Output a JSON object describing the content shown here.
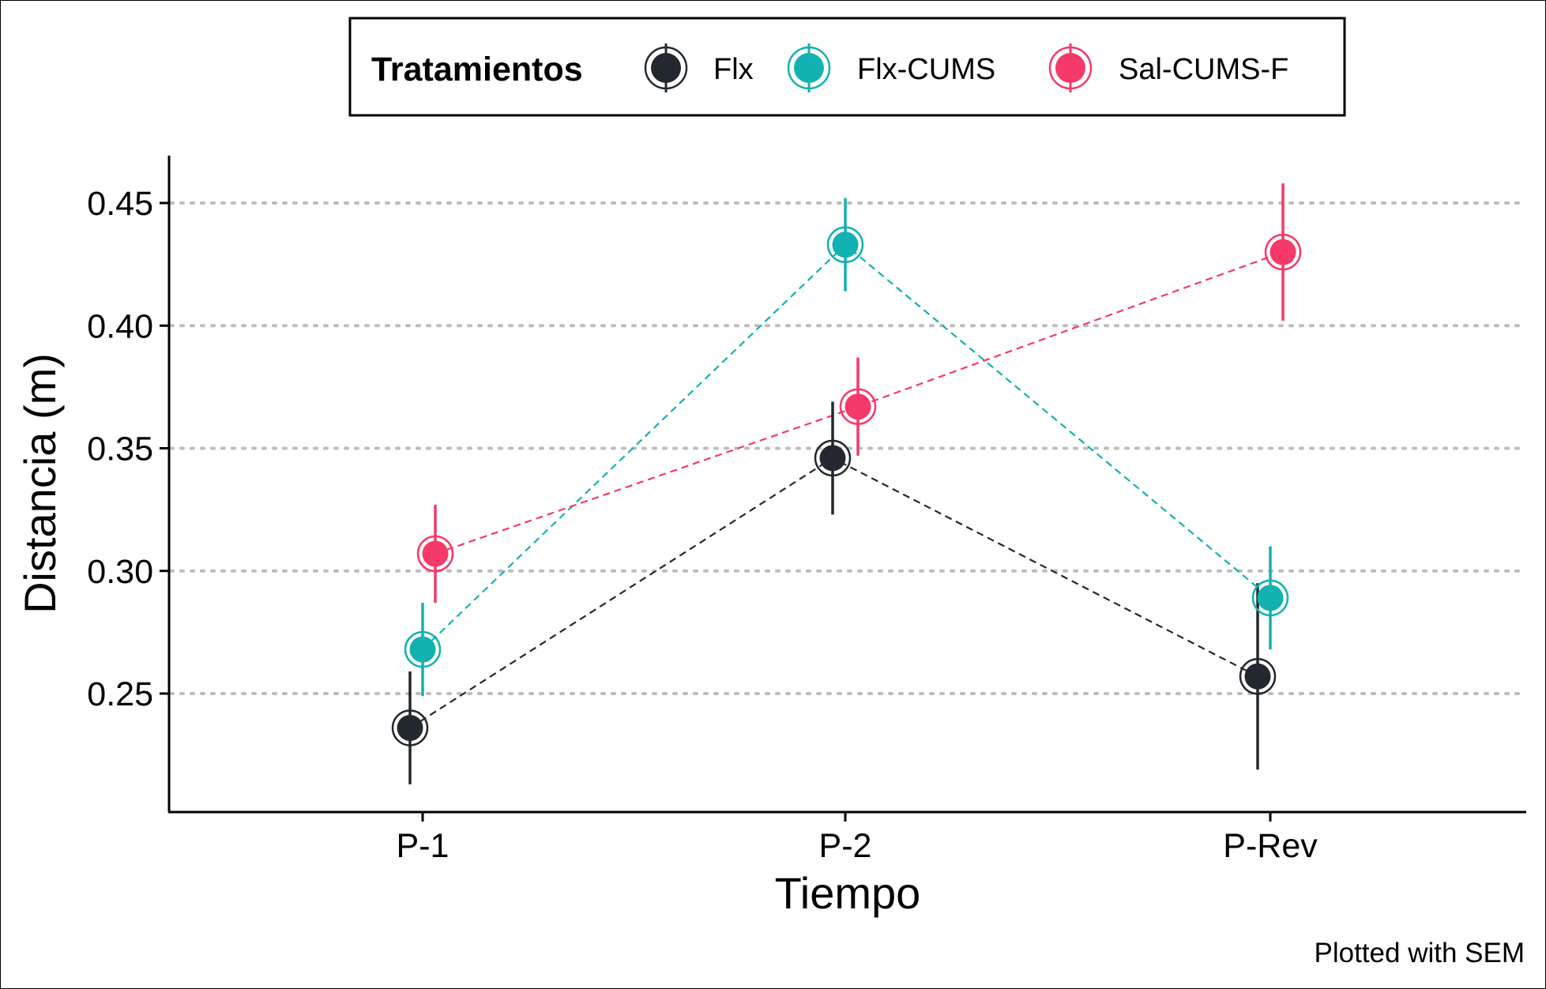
{
  "chart_data": {
    "type": "line",
    "xlabel": "Tiempo",
    "ylabel": "Distancia (m)",
    "categories": [
      "P-1",
      "P-2",
      "P-Rev"
    ],
    "ylim": [
      0.202,
      0.469
    ],
    "yticks": [
      0.25,
      0.3,
      0.35,
      0.4,
      0.45
    ],
    "ytick_labels": [
      "0.25",
      "0.30",
      "0.35",
      "0.40",
      "0.45"
    ],
    "grid": "horizontal dotted",
    "legend": {
      "title": "Tratamientos",
      "position": "top",
      "entries": [
        "Flx",
        "Flx-CUMS",
        "Sal-CUMS-F"
      ]
    },
    "caption": "Plotted with SEM",
    "series": [
      {
        "name": "Flx",
        "color": "#23282f",
        "values": [
          0.236,
          0.346,
          0.257
        ],
        "sem": [
          0.023,
          0.023,
          0.038
        ]
      },
      {
        "name": "Flx-CUMS",
        "color": "#12b1b2",
        "values": [
          0.268,
          0.433,
          0.289
        ],
        "sem": [
          0.019,
          0.019,
          0.021
        ]
      },
      {
        "name": "Sal-CUMS-F",
        "color": "#f5396a",
        "values": [
          0.307,
          0.367,
          0.43
        ],
        "sem": [
          0.02,
          0.02,
          0.028
        ]
      }
    ]
  }
}
